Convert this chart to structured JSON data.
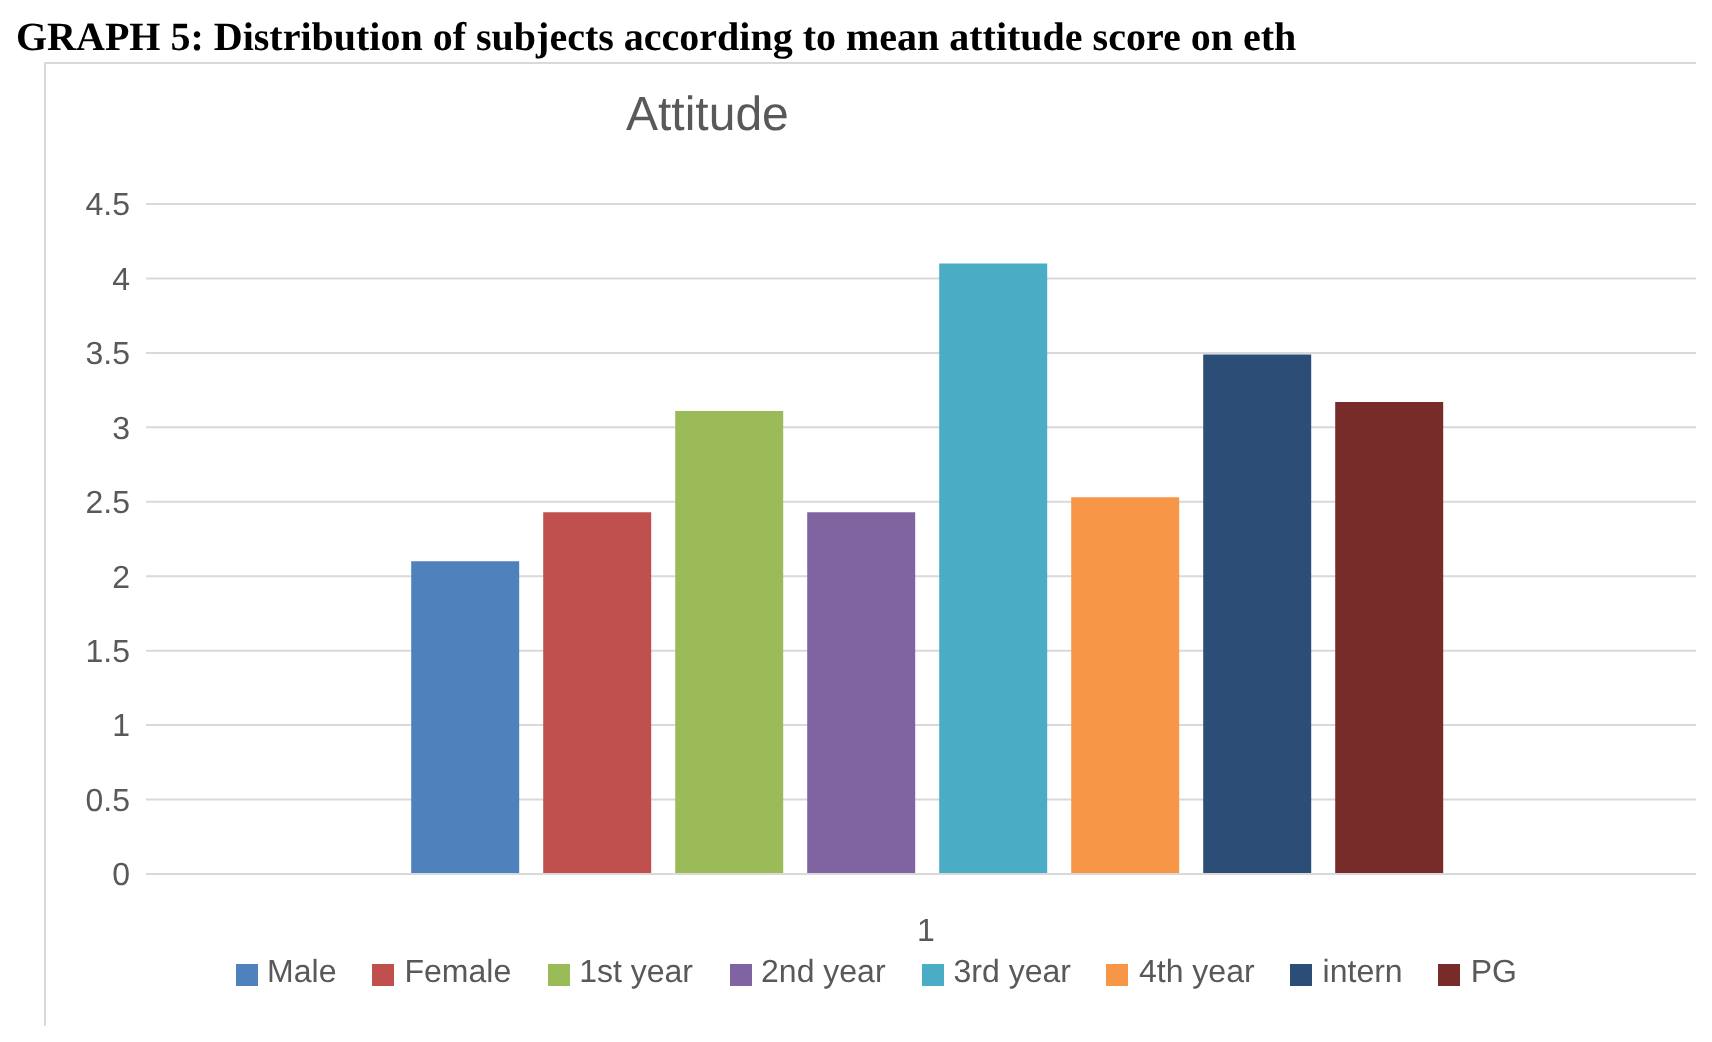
{
  "chart_data": {
    "type": "bar",
    "title": "GRAPH 5: Distribution of subjects according to mean attitude score on eth",
    "subtitle": "Attitude",
    "categories": [
      "1"
    ],
    "series": [
      {
        "name": "Male",
        "color": "#4f81bd",
        "values": [
          2.1
        ]
      },
      {
        "name": "Female",
        "color": "#c0504d",
        "values": [
          2.43
        ]
      },
      {
        "name": "1st year",
        "color": "#9bbb59",
        "values": [
          3.11
        ]
      },
      {
        "name": "2nd year",
        "color": "#8064a2",
        "values": [
          2.43
        ]
      },
      {
        "name": "3rd year",
        "color": "#4bacc6",
        "values": [
          4.1
        ]
      },
      {
        "name": "4th year",
        "color": "#f79646",
        "values": [
          2.53
        ]
      },
      {
        "name": "intern",
        "color": "#2c4d75",
        "values": [
          3.49
        ]
      },
      {
        "name": "PG",
        "color": "#772c2a",
        "values": [
          3.17
        ]
      }
    ],
    "ylim": [
      0,
      4.5
    ],
    "yticks": [
      0,
      0.5,
      1,
      1.5,
      2,
      2.5,
      3,
      3.5,
      4,
      4.5
    ],
    "grid": "y",
    "legend": "bottom"
  }
}
